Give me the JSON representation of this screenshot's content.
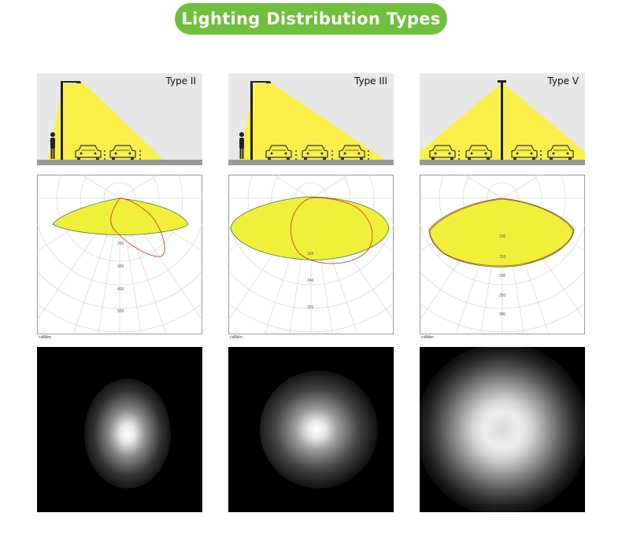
{
  "header": {
    "title": "Lighting Distribution Types"
  },
  "colors": {
    "header_green": "#6fbe3c",
    "beam_yellow": "#fbf04a",
    "polar_fill": "#f0f03a",
    "curve_red": "#d43b1f",
    "curve_green": "#3c7a46"
  },
  "panels": [
    {
      "type_label": "Type II",
      "unit": "cd/klm",
      "tick_labels": [
        "200",
        "300",
        "400",
        "500"
      ],
      "icons": [
        "pole-icon",
        "pedestrian-icon",
        "car-icon",
        "car-icon"
      ]
    },
    {
      "type_label": "Type III",
      "unit": "cd/klm",
      "tick_labels": [
        "160",
        "240",
        "320"
      ],
      "icons": [
        "pole-icon",
        "pedestrian-icon",
        "car-icon",
        "car-icon",
        "car-icon"
      ]
    },
    {
      "type_label": "Type V",
      "unit": "cd/klm",
      "tick_labels": [
        "100",
        "150",
        "200",
        "250",
        "300"
      ],
      "icons": [
        "pole-icon",
        "car-icon",
        "car-icon",
        "car-icon",
        "car-icon"
      ]
    }
  ]
}
